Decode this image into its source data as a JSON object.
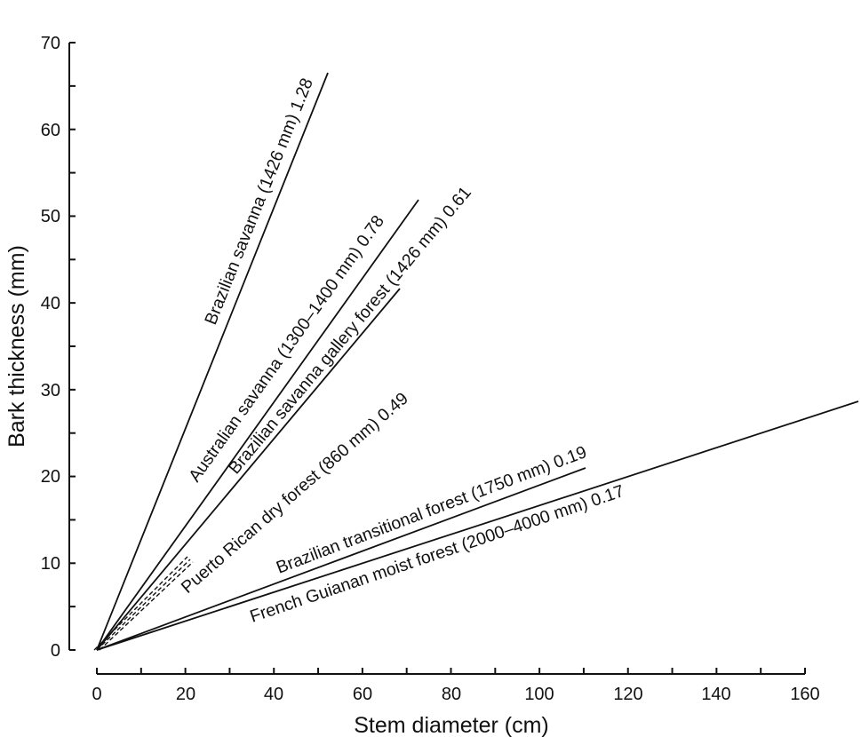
{
  "chart_data": {
    "type": "line",
    "title": "",
    "xlabel": "Stem diameter (cm)",
    "ylabel": "Bark thickness (mm)",
    "xlim": [
      0,
      160
    ],
    "ylim": [
      0,
      70
    ],
    "x_ticks": [
      "0",
      "20",
      "40",
      "60",
      "80",
      "100",
      "120",
      "140",
      "160"
    ],
    "x_minor_step": 10,
    "y_ticks": [
      "0",
      "10",
      "20",
      "30",
      "40",
      "50",
      "60",
      "70"
    ],
    "y_minor_step": 5,
    "grid": false,
    "legend": "inline labels along lines",
    "series": [
      {
        "name": "Brazilian savanna (1426 mm)",
        "slope_label": "1.28",
        "slope": 1.28,
        "style": "solid",
        "x": [
          0,
          52
        ],
        "y": [
          0,
          66.5
        ]
      },
      {
        "name": "Australian savanna (1300–1400 mm)",
        "slope_label": "0.78",
        "slope": 0.78,
        "style": "solid",
        "x": [
          0,
          66.7
        ],
        "y": [
          0,
          52
        ]
      },
      {
        "name": "Brazilian savanna gallery forest (1426 mm)",
        "slope_label": "0.61",
        "slope": 0.61,
        "style": "solid",
        "x": [
          0,
          68.2
        ],
        "y": [
          0,
          41.6
        ]
      },
      {
        "name": "Puerto Rican dry forest (860 mm)",
        "slope_label": "0.49",
        "slope": 0.49,
        "style": "dashed",
        "x": [
          0,
          21.6
        ],
        "y": [
          0,
          10.6
        ]
      },
      {
        "name": "Brazilian transitional forest (1750 mm)",
        "slope_label": "0.19",
        "slope": 0.19,
        "style": "solid",
        "x": [
          0,
          110.5
        ],
        "y": [
          0,
          21
        ]
      },
      {
        "name": "French Guianan moist forest (2000–4000 mm)",
        "slope_label": "0.17",
        "slope": 0.17,
        "style": "solid",
        "x": [
          0,
          172
        ],
        "y": [
          0,
          28.7
        ]
      }
    ]
  },
  "labels": {
    "s1": "Brazilian savanna (1426 mm) 1.28",
    "s2": "Australian savanna (1300–1400 mm) 0.78",
    "s3": "Brazilian savanna gallery forest (1426 mm) 0.61",
    "s4": "Puerto Rican dry forest (860 mm) 0.49",
    "s5": "Brazilian transitional forest (1750 mm) 0.19",
    "s6": "French Guianan moist forest (2000–4000 mm) 0.17"
  }
}
